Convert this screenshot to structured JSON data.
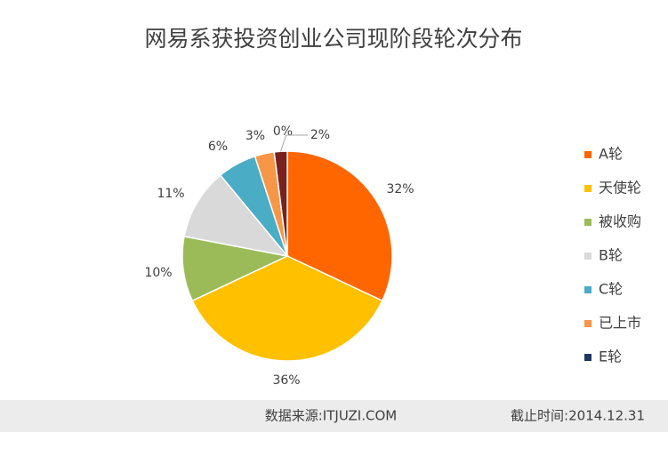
{
  "chart_data": {
    "type": "pie",
    "title": "网易系获投资创业公司现阶段轮次分布",
    "categories": [
      "A轮",
      "天使轮",
      "被收购",
      "B轮",
      "C轮",
      "已上市",
      "E轮",
      null
    ],
    "values": [
      32,
      36,
      10,
      11,
      6,
      3,
      0,
      2
    ],
    "value_labels": [
      "32%",
      "36%",
      "10%",
      "11%",
      "6%",
      "3%",
      "0%",
      "2%"
    ],
    "colors": [
      "#ff6600",
      "#ffc000",
      "#9bbb59",
      "#d9d9d9",
      "#4bacc6",
      "#f79646",
      "#1f3864",
      "#7b2020"
    ],
    "legend": "right"
  },
  "footer": {
    "source": "数据来源:ITJUZI.COM",
    "date": "截止时间:2014.12.31"
  }
}
